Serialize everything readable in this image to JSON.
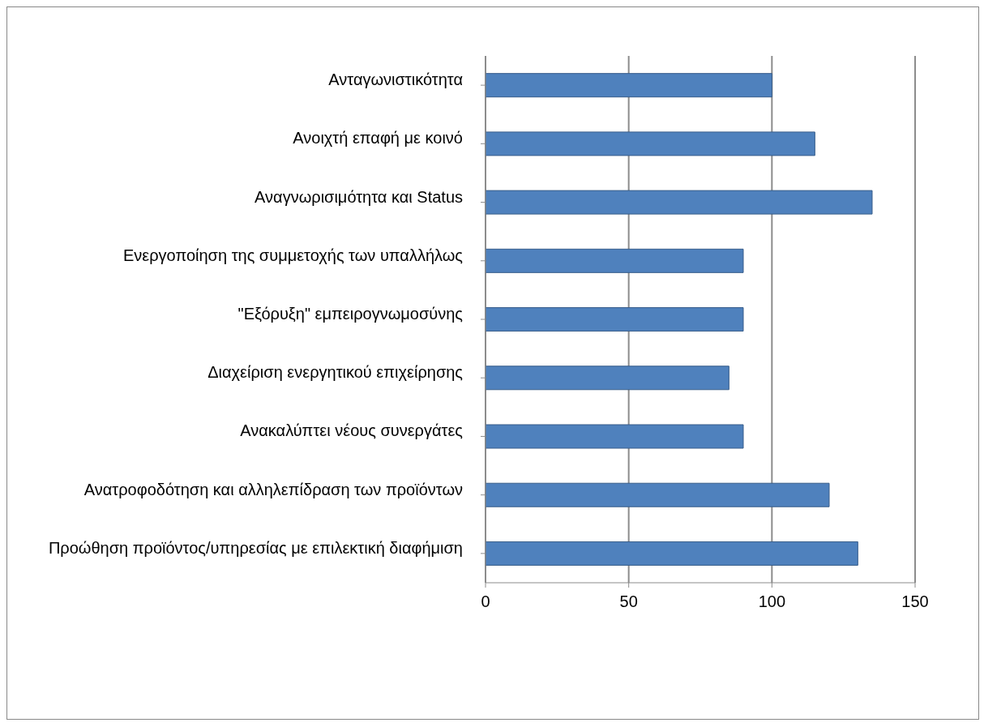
{
  "chart_data": {
    "type": "bar",
    "orientation": "horizontal",
    "categories": [
      "Ανταγωνιστικότητα",
      "Ανοιχτή επαφή με κοινό",
      "Αναγνωρισιμότητα και Status",
      "Ενεργοποίηση της συμμετοχής των υπαλλήλως",
      "\"Εξόρυξη\" εμπειρογνωμοσύνης",
      "Διαχείριση ενεργητικού επιχείρησης",
      "Ανακαλύπτει νέους συνεργάτες",
      "Ανατροφοδότηση και αλληλεπίδραση των προϊόντων",
      "Προώθηση προϊόντος/υπηρεσίας με επιλεκτική διαφήμιση"
    ],
    "values": [
      100,
      115,
      135,
      90,
      90,
      85,
      90,
      120,
      130
    ],
    "color": "#4f81bd",
    "xlim": [
      0,
      150
    ],
    "xticks": [
      0,
      50,
      100,
      150
    ],
    "grid": "x"
  }
}
